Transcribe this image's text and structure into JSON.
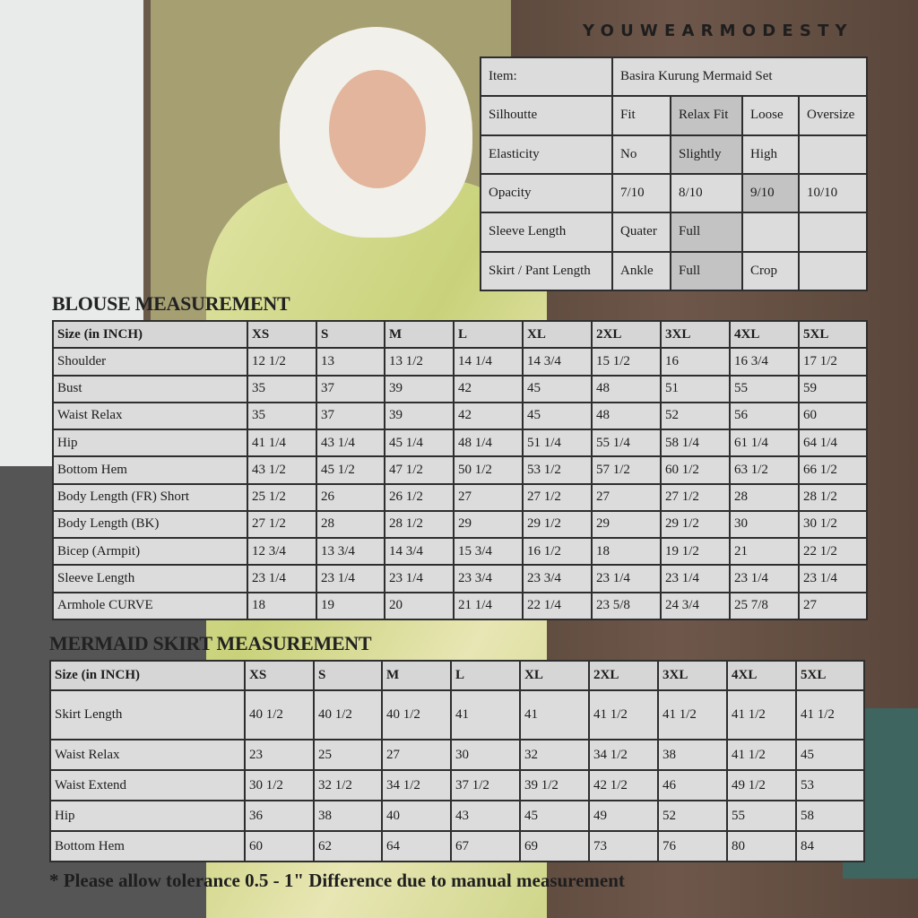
{
  "brand": "YOUWEARMODESTY",
  "colors": {
    "cell": "#dcdcdc",
    "highlight": "#c3c3c3",
    "border": "#2e2e2e"
  },
  "info_table": {
    "item_label": "Item:",
    "item_value": "Basira Kurung Mermaid Set",
    "rows": [
      {
        "label": "Silhoutte",
        "options": [
          "Fit",
          "Relax Fit",
          "Loose",
          "Oversize"
        ],
        "selected": 1
      },
      {
        "label": "Elasticity",
        "options": [
          "No",
          "Slightly",
          "High",
          ""
        ],
        "selected": 1
      },
      {
        "label": "Opacity",
        "options": [
          "7/10",
          "8/10",
          "9/10",
          "10/10"
        ],
        "selected": 2
      },
      {
        "label": "Sleeve Length",
        "options": [
          "Quater",
          "Full",
          "",
          ""
        ],
        "selected": 1
      },
      {
        "label": "Skirt / Pant Length",
        "options": [
          "Ankle",
          "Full",
          "Crop",
          ""
        ],
        "selected": 1
      }
    ]
  },
  "blouse": {
    "title": "BLOUSE MEASUREMENT",
    "header": [
      "Size (in INCH)",
      "XS",
      "S",
      "M",
      "L",
      "XL",
      "2XL",
      "3XL",
      "4XL",
      "5XL"
    ],
    "rows": [
      [
        "Shoulder",
        "12 1/2",
        "13",
        "13 1/2",
        "14 1/4",
        "14 3/4",
        "15 1/2",
        "16",
        "16 3/4",
        "17 1/2"
      ],
      [
        "Bust",
        "35",
        "37",
        "39",
        "42",
        "45",
        "48",
        "51",
        "55",
        "59"
      ],
      [
        "Waist Relax",
        "35",
        "37",
        "39",
        "42",
        "45",
        "48",
        "52",
        "56",
        "60"
      ],
      [
        "Hip",
        "41 1/4",
        "43 1/4",
        "45 1/4",
        "48 1/4",
        "51 1/4",
        "55 1/4",
        "58 1/4",
        "61 1/4",
        "64 1/4"
      ],
      [
        "Bottom Hem",
        "43 1/2",
        "45 1/2",
        "47 1/2",
        "50 1/2",
        "53 1/2",
        "57 1/2",
        "60 1/2",
        "63 1/2",
        "66 1/2"
      ],
      [
        "Body Length (FR) Short",
        "25 1/2",
        "26",
        "26 1/2",
        "27",
        "27 1/2",
        "27",
        "27 1/2",
        "28",
        "28 1/2"
      ],
      [
        "Body Length (BK)",
        "27 1/2",
        "28",
        "28 1/2",
        "29",
        "29 1/2",
        "29",
        "29 1/2",
        "30",
        "30 1/2"
      ],
      [
        "Bicep (Armpit)",
        "12 3/4",
        "13 3/4",
        "14 3/4",
        "15 3/4",
        "16 1/2",
        "18",
        "19 1/2",
        "21",
        "22 1/2"
      ],
      [
        "Sleeve Length",
        "23 1/4",
        "23 1/4",
        "23 1/4",
        "23 3/4",
        "23 3/4",
        "23 1/4",
        "23 1/4",
        "23 1/4",
        "23 1/4"
      ],
      [
        "Armhole CURVE",
        "18",
        "19",
        "20",
        "21 1/4",
        "22 1/4",
        "23 5/8",
        "24 3/4",
        "25 7/8",
        "27"
      ]
    ]
  },
  "skirt": {
    "title": "MERMAID SKIRT MEASUREMENT",
    "header": [
      "Size (in INCH)",
      "XS",
      "S",
      "M",
      "L",
      "XL",
      "2XL",
      "3XL",
      "4XL",
      "5XL"
    ],
    "rows": [
      [
        "Skirt Length",
        "40 1/2",
        "40 1/2",
        "40 1/2",
        "41",
        "41",
        "41 1/2",
        "41 1/2",
        "41 1/2",
        "41 1/2"
      ],
      [
        "Waist Relax",
        "23",
        "25",
        "27",
        "30",
        "32",
        "34 1/2",
        "38",
        "41 1/2",
        "45"
      ],
      [
        "Waist Extend",
        "30 1/2",
        "32 1/2",
        "34 1/2",
        "37 1/2",
        "39 1/2",
        "42 1/2",
        "46",
        "49 1/2",
        "53"
      ],
      [
        "Hip",
        "36",
        "38",
        "40",
        "43",
        "45",
        "49",
        "52",
        "55",
        "58"
      ],
      [
        "Bottom Hem",
        "60",
        "62",
        "64",
        "67",
        "69",
        "73",
        "76",
        "80",
        "84"
      ]
    ]
  },
  "note": "* Please allow tolerance 0.5 - 1\" Difference due to manual measurement"
}
